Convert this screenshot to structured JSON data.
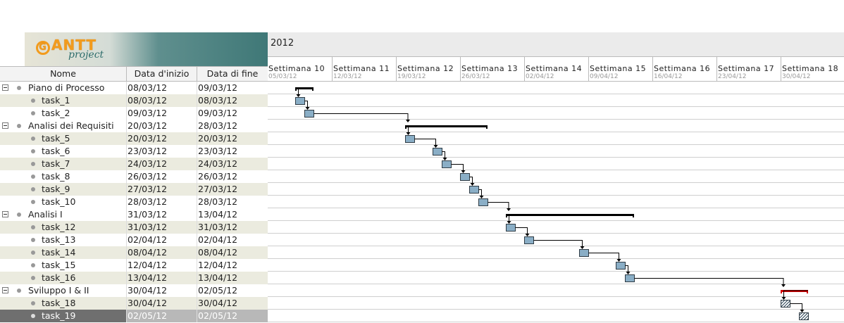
{
  "logo": {
    "brand": "ANTT",
    "brand_letter": "G",
    "subtitle": "project"
  },
  "table": {
    "headers": {
      "name": "Nome",
      "start": "Data d'inizio",
      "end": "Data di fine"
    },
    "rows": [
      {
        "name": "Piano di Processo",
        "start": "08/03/12",
        "end": "09/03/12",
        "group": true
      },
      {
        "name": "task_1",
        "start": "08/03/12",
        "end": "08/03/12"
      },
      {
        "name": "task_2",
        "start": "09/03/12",
        "end": "09/03/12"
      },
      {
        "name": "Analisi dei Requisiti",
        "start": "20/03/12",
        "end": "28/03/12",
        "group": true
      },
      {
        "name": "task_5",
        "start": "20/03/12",
        "end": "20/03/12"
      },
      {
        "name": "task_6",
        "start": "23/03/12",
        "end": "23/03/12"
      },
      {
        "name": "task_7",
        "start": "24/03/12",
        "end": "24/03/12"
      },
      {
        "name": "task_8",
        "start": "26/03/12",
        "end": "26/03/12"
      },
      {
        "name": "task_9",
        "start": "27/03/12",
        "end": "27/03/12"
      },
      {
        "name": "task_10",
        "start": "28/03/12",
        "end": "28/03/12"
      },
      {
        "name": "Analisi I",
        "start": "31/03/12",
        "end": "13/04/12",
        "group": true
      },
      {
        "name": "task_12",
        "start": "31/03/12",
        "end": "31/03/12"
      },
      {
        "name": "task_13",
        "start": "02/04/12",
        "end": "02/04/12"
      },
      {
        "name": "task_14",
        "start": "08/04/12",
        "end": "08/04/12"
      },
      {
        "name": "task_15",
        "start": "12/04/12",
        "end": "12/04/12"
      },
      {
        "name": "task_16",
        "start": "13/04/12",
        "end": "13/04/12"
      },
      {
        "name": "Sviluppo I & II",
        "start": "30/04/12",
        "end": "02/05/12",
        "group": true
      },
      {
        "name": "task_18",
        "start": "30/04/12",
        "end": "30/04/12"
      },
      {
        "name": "task_19",
        "start": "02/05/12",
        "end": "02/05/12",
        "selected": true
      }
    ]
  },
  "chart": {
    "year": "2012",
    "weeks": [
      {
        "label": "Settimana 10",
        "date": "05/03/12"
      },
      {
        "label": "Settimana 11",
        "date": "12/03/12"
      },
      {
        "label": "Settimana 12",
        "date": "19/03/12"
      },
      {
        "label": "Settimana 13",
        "date": "26/03/12"
      },
      {
        "label": "Settimana 14",
        "date": "02/04/12"
      },
      {
        "label": "Settimana 15",
        "date": "09/04/12"
      },
      {
        "label": "Settimana 16",
        "date": "16/04/12"
      },
      {
        "label": "Settimana 17",
        "date": "23/04/12"
      },
      {
        "label": "Settimana 18",
        "date": "30/04/12"
      }
    ],
    "colors": {
      "task": "#8aaec6",
      "critical_summary": "#d40000",
      "summary": "#000000"
    }
  }
}
